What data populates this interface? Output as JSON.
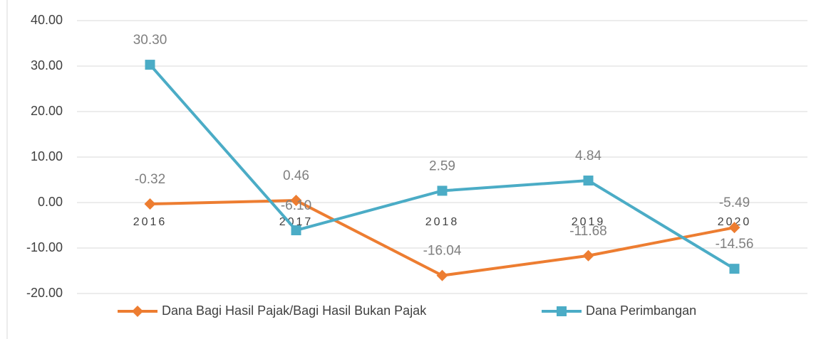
{
  "chart_data": {
    "type": "line",
    "categories": [
      "2016",
      "2017",
      "2018",
      "2019",
      "2020"
    ],
    "series": [
      {
        "name": "Dana Bagi Hasil Pajak/Bagi Hasil Bukan Pajak",
        "color": "#ED7D31",
        "marker": "diamond",
        "values": [
          -0.32,
          0.46,
          -16.04,
          -11.68,
          -5.49
        ],
        "value_labels": [
          "-0.32",
          "0.46",
          "-16.04",
          "-11.68",
          "-5.49"
        ]
      },
      {
        "name": "Dana Perimbangan",
        "color": "#4BACC6",
        "marker": "square",
        "values": [
          30.3,
          -6.1,
          2.59,
          4.84,
          -14.56
        ],
        "value_labels": [
          "30.30",
          "-6.10",
          "2.59",
          "4.84",
          "-14.56"
        ]
      }
    ],
    "ylim": [
      -20,
      40
    ],
    "yticks": [
      {
        "value": -20,
        "label": "-20.00"
      },
      {
        "value": -10,
        "label": "-10.00"
      },
      {
        "value": 0,
        "label": "0.00"
      },
      {
        "value": 10,
        "label": "10.00"
      },
      {
        "value": 20,
        "label": "20.00"
      },
      {
        "value": 30,
        "label": "30.00"
      },
      {
        "value": 40,
        "label": "40.00"
      }
    ],
    "grid": true,
    "legend": "bottom"
  }
}
